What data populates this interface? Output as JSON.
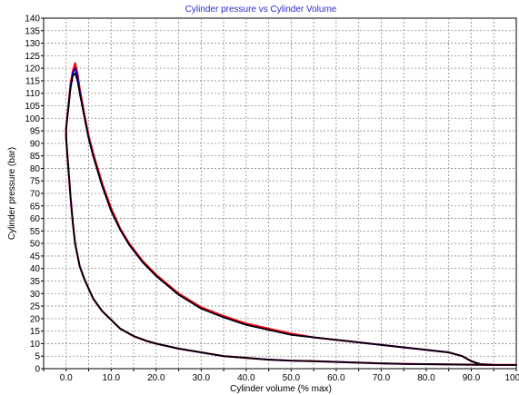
{
  "chart_data": {
    "type": "line",
    "title": "Cylinder pressure vs Cylinder Volume",
    "xlabel": "Cylinder volume (% max)",
    "ylabel": "Cylinder pressure (bar)",
    "xlim": [
      -5,
      100
    ],
    "ylim": [
      0,
      140
    ],
    "grid": true,
    "x_ticks": [
      "0.0",
      "10.0",
      "20.0",
      "30.0",
      "40.0",
      "50.0",
      "60.0",
      "70.0",
      "80.0",
      "90.0",
      "100.0"
    ],
    "y_ticks": [
      "0",
      "5",
      "10",
      "15",
      "20",
      "25",
      "30",
      "35",
      "40",
      "45",
      "50",
      "55",
      "60",
      "65",
      "70",
      "75",
      "80",
      "85",
      "90",
      "95",
      "100",
      "105",
      "110",
      "115",
      "120",
      "125",
      "130",
      "135",
      "140"
    ],
    "colors": {
      "series_red": "#ff0000",
      "series_blue": "#0000cc",
      "series_black": "#000000",
      "title": "#2b2bd6"
    },
    "series": [
      {
        "color": "#ff0000",
        "x": [
          100,
          95,
          92,
          90,
          88,
          85,
          80,
          75,
          70,
          65,
          60,
          55,
          50,
          45,
          40,
          35,
          30,
          25,
          20,
          17,
          14,
          12,
          10,
          8,
          6,
          5,
          4,
          3,
          2.5,
          2,
          1.5,
          1,
          0.5,
          0,
          0,
          0.5,
          1,
          1.5,
          2,
          3,
          4,
          5,
          6,
          8,
          10,
          12,
          15,
          18,
          20,
          25,
          30,
          35,
          40,
          45,
          50,
          55,
          60,
          65,
          70,
          75,
          80,
          85,
          90,
          95,
          100
        ],
        "y": [
          1.5,
          1.5,
          1.8,
          3,
          5,
          6.5,
          7.5,
          8.5,
          9.5,
          10.5,
          11.5,
          12.5,
          14,
          16,
          18,
          21,
          24.5,
          30,
          37.5,
          43,
          50,
          56,
          64,
          74,
          86,
          93,
          102,
          112,
          118,
          122,
          119,
          114,
          105,
          96,
          92,
          80,
          68,
          58,
          50,
          41,
          36,
          32,
          28,
          23,
          19.5,
          16,
          13,
          11,
          10,
          8,
          6.5,
          5,
          4.3,
          3.6,
          3.2,
          3,
          2.7,
          2.4,
          2.1,
          1.9,
          1.8,
          1.7,
          1.6,
          1.5,
          1.5
        ]
      },
      {
        "color": "#0000cc",
        "x": [
          100,
          95,
          92,
          90,
          88,
          85,
          80,
          75,
          70,
          65,
          60,
          55,
          50,
          45,
          40,
          35,
          30,
          25,
          20,
          17,
          14,
          12,
          10,
          8,
          6,
          5,
          4,
          3,
          2.5,
          2,
          1.5,
          1,
          0.5,
          0,
          0,
          0.5,
          1,
          1.5,
          2,
          3,
          4,
          5,
          6,
          8,
          10,
          12,
          15,
          18,
          20,
          25,
          30,
          35,
          40,
          45,
          50,
          55,
          60,
          65,
          70,
          75,
          80,
          85,
          90,
          95,
          100
        ],
        "y": [
          1.5,
          1.5,
          1.8,
          3,
          5,
          6.5,
          7.5,
          8.5,
          9.5,
          10.5,
          11.5,
          12.5,
          13.5,
          15.5,
          17.5,
          20.5,
          24,
          29.5,
          37,
          42.5,
          49.5,
          55.5,
          63,
          73,
          85,
          92,
          101,
          111,
          117,
          120,
          118,
          113,
          104,
          96,
          92,
          80,
          68,
          58,
          50,
          41,
          36,
          32,
          28,
          23,
          19.5,
          16,
          13,
          11,
          10,
          8,
          6.5,
          5,
          4.3,
          3.6,
          3.2,
          3,
          2.7,
          2.4,
          2.1,
          1.9,
          1.8,
          1.7,
          1.6,
          1.5,
          1.5
        ]
      },
      {
        "color": "#000000",
        "x": [
          100,
          95,
          92,
          90,
          88,
          85,
          80,
          75,
          70,
          65,
          60,
          55,
          50,
          45,
          40,
          35,
          30,
          25,
          20,
          17,
          14,
          12,
          10,
          8,
          6,
          5,
          4,
          3,
          2.5,
          2,
          1.5,
          1,
          0.5,
          0,
          0,
          0.5,
          1,
          1.5,
          2,
          3,
          4,
          5,
          6,
          8,
          10,
          12,
          15,
          18,
          20,
          25,
          30,
          35,
          40,
          45,
          50,
          55,
          60,
          65,
          70,
          75,
          80,
          85,
          90,
          95,
          100
        ],
        "y": [
          1.5,
          1.5,
          1.8,
          3,
          5,
          6.5,
          7.5,
          8.5,
          9.5,
          10.5,
          11.5,
          12.5,
          13.5,
          15.5,
          17.5,
          20.5,
          24,
          29.5,
          37,
          42.5,
          49.5,
          55.5,
          63,
          73,
          85,
          92,
          101,
          110,
          115,
          118,
          117,
          112,
          104,
          96,
          92,
          80,
          68,
          58,
          50,
          41,
          36,
          32,
          28,
          23,
          19.5,
          16,
          13,
          11,
          10,
          8,
          6.5,
          5,
          4.3,
          3.6,
          3.2,
          3,
          2.7,
          2.4,
          2.1,
          1.9,
          1.8,
          1.7,
          1.6,
          1.5,
          1.5
        ]
      }
    ]
  }
}
